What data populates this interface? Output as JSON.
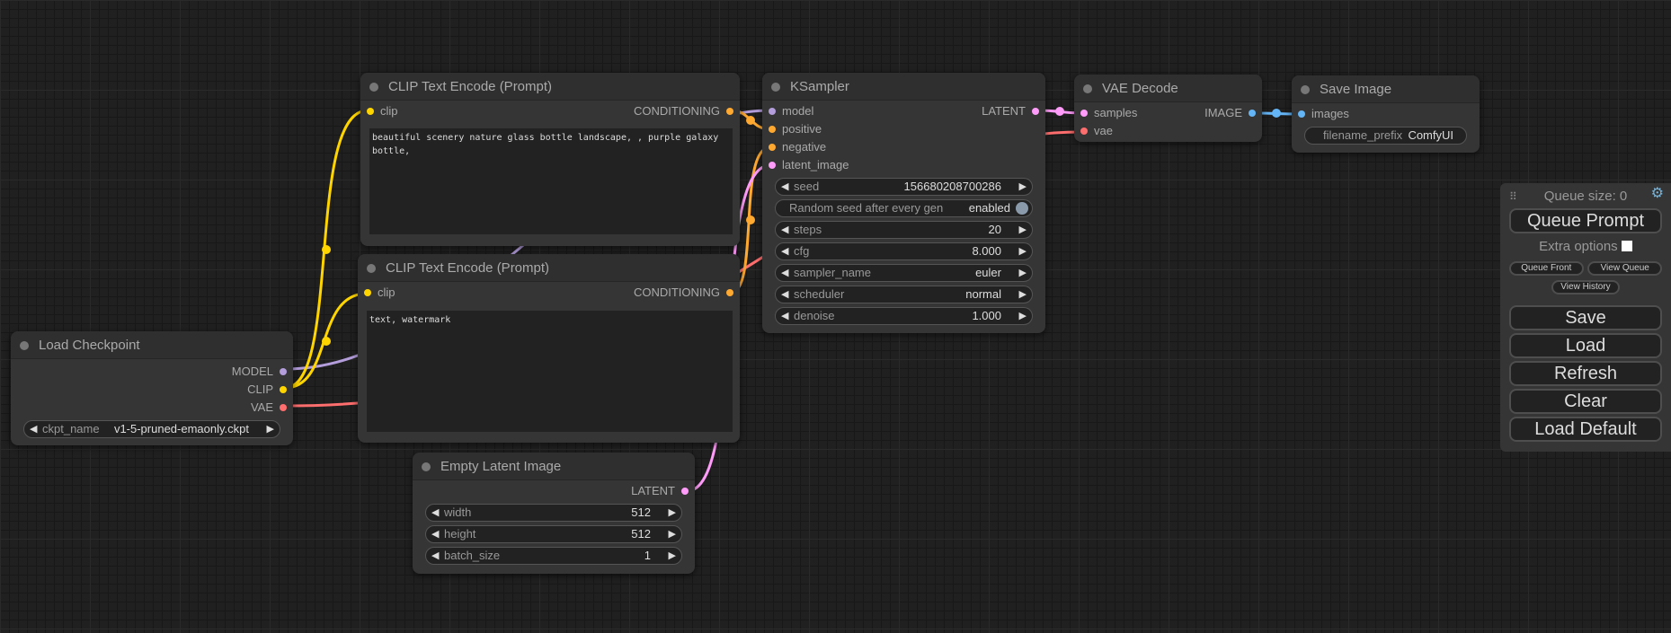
{
  "colors": {
    "clip": "#ffd500",
    "model": "#b39ddb",
    "vae": "#ff6e6e",
    "conditioning": "#ffa931",
    "latent": "#ff9cf9",
    "image": "#64b5f6"
  },
  "load_checkpoint": {
    "title": "Load Checkpoint",
    "outputs": [
      "MODEL",
      "CLIP",
      "VAE"
    ],
    "ckpt_label": "ckpt_name",
    "ckpt_value": "v1-5-pruned-emaonly.ckpt"
  },
  "clip_pos": {
    "title": "CLIP Text Encode (Prompt)",
    "input": "clip",
    "output": "CONDITIONING",
    "text": "beautiful scenery nature glass bottle landscape, , purple galaxy bottle,"
  },
  "clip_neg": {
    "title": "CLIP Text Encode (Prompt)",
    "input": "clip",
    "output": "CONDITIONING",
    "text": "text, watermark"
  },
  "empty_latent": {
    "title": "Empty Latent Image",
    "output": "LATENT",
    "widgets": [
      {
        "label": "width",
        "value": "512"
      },
      {
        "label": "height",
        "value": "512"
      },
      {
        "label": "batch_size",
        "value": "1"
      }
    ]
  },
  "ksampler": {
    "title": "KSampler",
    "inputs": [
      "model",
      "positive",
      "negative",
      "latent_image"
    ],
    "output": "LATENT",
    "seed": {
      "label": "seed",
      "value": "156680208700286"
    },
    "random_seed": {
      "label": "Random seed after every gen",
      "value": "enabled"
    },
    "widgets": [
      {
        "label": "steps",
        "value": "20"
      },
      {
        "label": "cfg",
        "value": "8.000"
      },
      {
        "label": "sampler_name",
        "value": "euler"
      },
      {
        "label": "scheduler",
        "value": "normal"
      },
      {
        "label": "denoise",
        "value": "1.000"
      }
    ]
  },
  "vae_decode": {
    "title": "VAE Decode",
    "inputs": [
      "samples",
      "vae"
    ],
    "output": "IMAGE"
  },
  "save_image": {
    "title": "Save Image",
    "input": "images",
    "prefix_label": "filename_prefix",
    "prefix_value": "ComfyUI"
  },
  "panel": {
    "queue_size": "Queue size: 0",
    "queue_prompt": "Queue Prompt",
    "extra_options": "Extra options",
    "queue_front": "Queue Front",
    "view_queue": "View Queue",
    "view_history": "View History",
    "save": "Save",
    "load": "Load",
    "refresh": "Refresh",
    "clear": "Clear",
    "load_default": "Load Default"
  }
}
